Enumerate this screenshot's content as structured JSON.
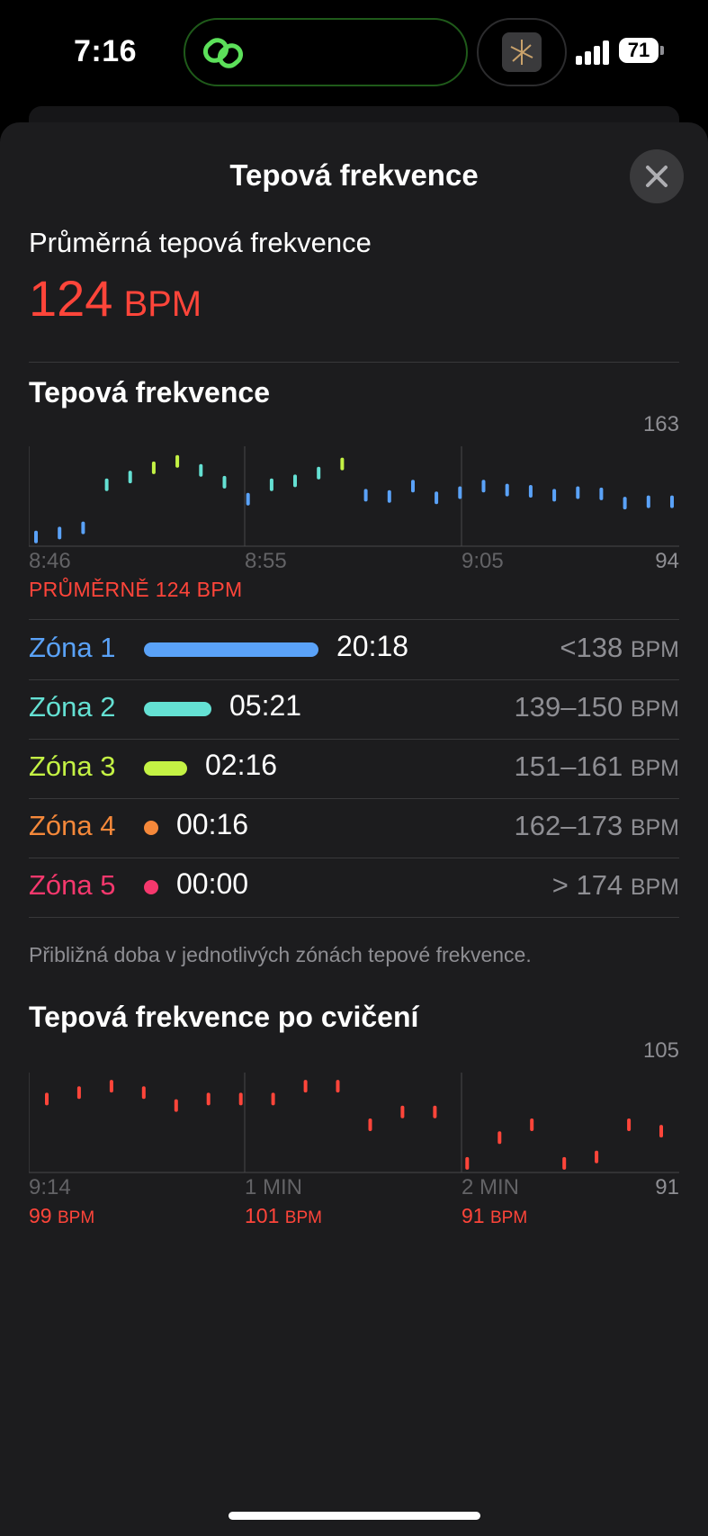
{
  "status_bar": {
    "time": "7:16",
    "battery": "71"
  },
  "sheet": {
    "title": "Tepová frekvence"
  },
  "average": {
    "label": "Průměrná tepová frekvence",
    "value": "124",
    "unit": "BPM"
  },
  "hr_chart": {
    "title": "Tepová frekvence",
    "max_label": "163",
    "min_label": "94",
    "x_labels": [
      "8:46",
      "8:55",
      "9:05"
    ],
    "avg_caption": "PRŮMĚRNĚ 124 BPM"
  },
  "zones": [
    {
      "name": "Zóna 1",
      "time": "20:18",
      "range": "<138",
      "unit": "BPM",
      "color": "#5aa2f8",
      "fraction": 1.0
    },
    {
      "name": "Zóna 2",
      "time": "05:21",
      "range": "139–150",
      "unit": "BPM",
      "color": "#64e0d3",
      "fraction": 0.33
    },
    {
      "name": "Zóna 3",
      "time": "02:16",
      "range": "151–161",
      "unit": "BPM",
      "color": "#c4f244",
      "fraction": 0.18
    },
    {
      "name": "Zóna 4",
      "time": "00:16",
      "range": "162–173",
      "unit": "BPM",
      "color": "#f5883a",
      "fraction": 0.0
    },
    {
      "name": "Zóna 5",
      "time": "00:00",
      "range": "> 174",
      "unit": "BPM",
      "color": "#f5386d",
      "fraction": 0.0
    }
  ],
  "zones_footnote": "Přibližná doba v jednotlivých zónách tepové frekvence.",
  "recovery": {
    "title": "Tepová frekvence po cvičení",
    "max_label": "105",
    "min_label": "91",
    "x_labels": [
      "9:14",
      "1 MIN",
      "2 MIN"
    ],
    "values": [
      {
        "value": "99",
        "unit": "BPM"
      },
      {
        "value": "101",
        "unit": "BPM"
      },
      {
        "value": "91",
        "unit": "BPM"
      }
    ]
  },
  "colors": {
    "accent": "#ff453a",
    "background": "#1c1c1e"
  },
  "chart_data": [
    {
      "type": "scatter",
      "title": "Tepová frekvence",
      "x": [
        "8:46",
        "8:47",
        "8:48",
        "8:49",
        "8:50",
        "8:51",
        "8:52",
        "8:53",
        "8:54",
        "8:55",
        "8:56",
        "8:57",
        "8:58",
        "8:59",
        "9:00",
        "9:01",
        "9:02",
        "9:03",
        "9:04",
        "9:05",
        "9:06",
        "9:07",
        "9:08",
        "9:09",
        "9:10",
        "9:11",
        "9:12",
        "9:13"
      ],
      "y": [
        99,
        102,
        106,
        139,
        145,
        152,
        157,
        150,
        141,
        128,
        139,
        142,
        148,
        155,
        131,
        130,
        138,
        129,
        133,
        138,
        135,
        134,
        131,
        133,
        132,
        125,
        126,
        126
      ],
      "ylim": [
        94,
        163
      ],
      "avg": 124
    },
    {
      "type": "scatter",
      "title": "Tepová frekvence po cvičení",
      "x": [
        0,
        10,
        20,
        30,
        40,
        50,
        60,
        70,
        80,
        90,
        100,
        110,
        120,
        130,
        140,
        150,
        160,
        170,
        180,
        190
      ],
      "y": [
        102,
        103,
        104,
        103,
        101,
        102,
        102,
        102,
        104,
        104,
        98,
        100,
        100,
        92,
        96,
        98,
        92,
        93,
        98,
        97
      ],
      "ylim": [
        91,
        105
      ]
    }
  ]
}
